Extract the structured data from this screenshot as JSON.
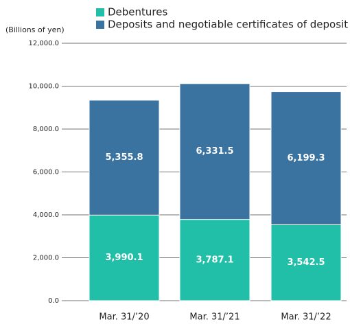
{
  "chart_data": {
    "type": "stacked_bar",
    "y_label": "(Billions of yen)",
    "categories": [
      "Mar. 31/’20",
      "Mar. 31/’21",
      "Mar. 31/’22"
    ],
    "series": [
      {
        "name": "Debentures",
        "color": "#22bfa8",
        "values": [
          3990.1,
          3787.1,
          3542.5
        ],
        "value_labels": [
          "3,990.1",
          "3,787.1",
          "3,542.5"
        ]
      },
      {
        "name": "Deposits and negotiable certificates of deposit",
        "color": "#3a72a0",
        "values": [
          5355.8,
          6331.5,
          6199.3
        ],
        "value_labels": [
          "5,355.8",
          "6,331.5",
          "6,199.3"
        ]
      }
    ],
    "ylim": [
      0,
      12000
    ],
    "yticks": [
      {
        "value": 0,
        "label": "0.0"
      },
      {
        "value": 2000,
        "label": "2,000.0"
      },
      {
        "value": 4000,
        "label": "4,000.0"
      },
      {
        "value": 6000,
        "label": "6,000.0"
      },
      {
        "value": 8000,
        "label": "8,000.0"
      },
      {
        "value": 10000,
        "label": "10,000.0"
      },
      {
        "value": 12000,
        "label": "12,000.0"
      }
    ],
    "grid": true
  }
}
